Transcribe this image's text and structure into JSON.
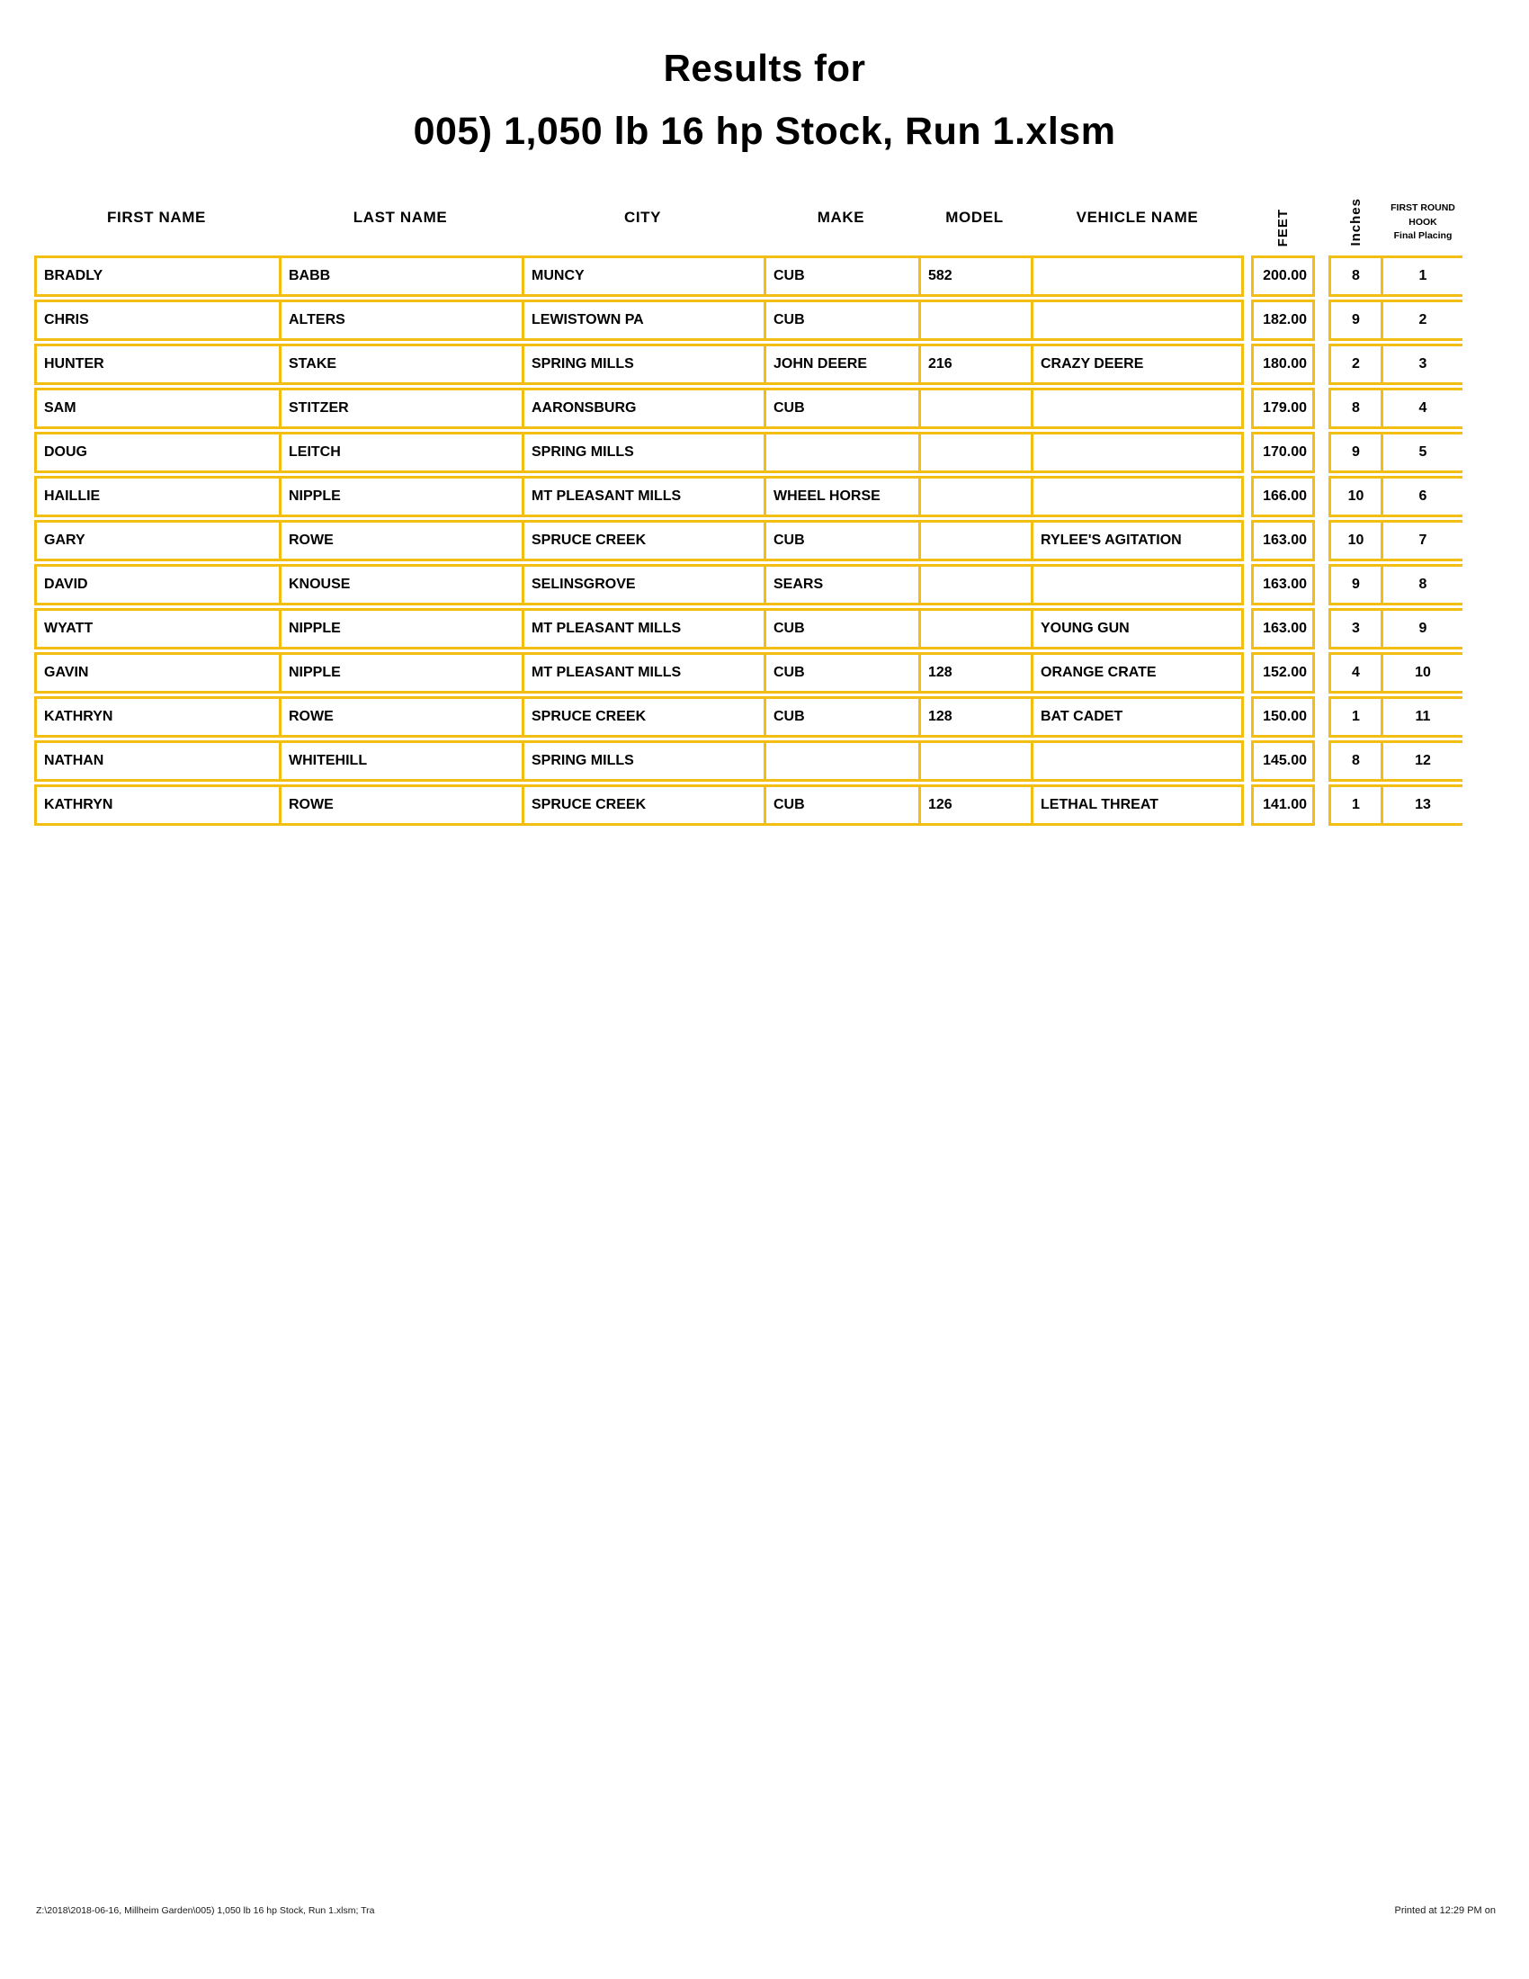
{
  "page": {
    "title_line1": "Results for",
    "title_line2": "005) 1,050 lb 16 hp Stock, Run 1.xlsm"
  },
  "table": {
    "headers": {
      "first_name": "FIRST NAME",
      "last_name": "LAST NAME",
      "city": "CITY",
      "make": "MAKE",
      "model": "MODEL",
      "vehicle_name": "VEHICLE NAME",
      "feet": "FEET",
      "inches": "Inches",
      "placing_line1": "FIRST ROUND",
      "placing_line2": "HOOK",
      "placing_line3": "Final Placing"
    },
    "rows": [
      [
        "BRADLY",
        "BABB",
        "MUNCY",
        "CUB",
        "582",
        "",
        "200.00",
        "8",
        "1"
      ],
      [
        "CHRIS",
        "ALTERS",
        "LEWISTOWN PA",
        "CUB",
        "",
        "",
        "182.00",
        "9",
        "2"
      ],
      [
        "HUNTER",
        "STAKE",
        "SPRING MILLS",
        "JOHN DEERE",
        "216",
        "CRAZY DEERE",
        "180.00",
        "2",
        "3"
      ],
      [
        "SAM",
        "STITZER",
        "AARONSBURG",
        "CUB",
        "",
        "",
        "179.00",
        "8",
        "4"
      ],
      [
        "DOUG",
        "LEITCH",
        "SPRING MILLS",
        "",
        "",
        "",
        "170.00",
        "9",
        "5"
      ],
      [
        "HAILLIE",
        "NIPPLE",
        "MT PLEASANT MILLS",
        "WHEEL HORSE",
        "",
        "",
        "166.00",
        "10",
        "6"
      ],
      [
        "GARY",
        "ROWE",
        "SPRUCE CREEK",
        "CUB",
        "",
        "RYLEE'S AGITATION",
        "163.00",
        "10",
        "7"
      ],
      [
        "DAVID",
        "KNOUSE",
        "SELINSGROVE",
        "SEARS",
        "",
        "",
        "163.00",
        "9",
        "8"
      ],
      [
        "WYATT",
        "NIPPLE",
        "MT PLEASANT MILLS",
        "CUB",
        "",
        "YOUNG GUN",
        "163.00",
        "3",
        "9"
      ],
      [
        "GAVIN",
        "NIPPLE",
        "MT PLEASANT MILLS",
        "CUB",
        "128",
        "ORANGE CRATE",
        "152.00",
        "4",
        "10"
      ],
      [
        "KATHRYN",
        "ROWE",
        "SPRUCE CREEK",
        "CUB",
        "128",
        "BAT CADET",
        "150.00",
        "1",
        "11"
      ],
      [
        "NATHAN",
        "WHITEHILL",
        "SPRING MILLS",
        "",
        "",
        "",
        "145.00",
        "8",
        "12"
      ],
      [
        "KATHRYN",
        "ROWE",
        "SPRUCE CREEK",
        "CUB",
        "126",
        "LETHAL THREAT",
        "141.00",
        "1",
        "13"
      ]
    ]
  },
  "footer": {
    "left": "Z:\\2018\\2018-06-16, Millheim Garden\\005) 1,050 lb 16 hp Stock, Run 1.xlsm;  Tra",
    "right": "Printed at 12:29 PM on"
  },
  "colors": {
    "border_gold": "#F2BE12",
    "text": "#000000"
  }
}
